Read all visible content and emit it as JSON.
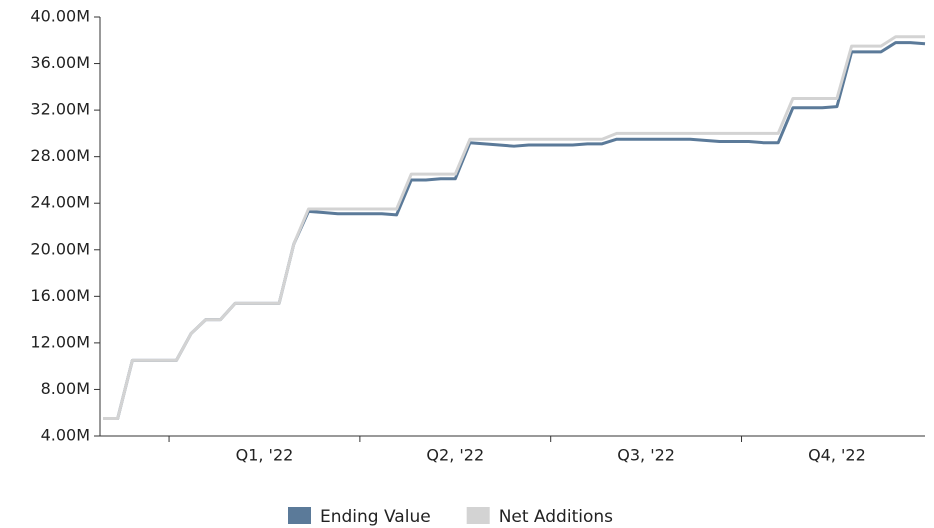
{
  "chart_data": {
    "type": "line",
    "categories": [
      null,
      null,
      null,
      null,
      null,
      null,
      null,
      null,
      null,
      null,
      null,
      "Q1, '22",
      null,
      null,
      null,
      null,
      null,
      null,
      null,
      null,
      null,
      null,
      null,
      null,
      "Q2, '22",
      null,
      null,
      null,
      null,
      null,
      null,
      null,
      null,
      null,
      null,
      null,
      null,
      "Q3, '22",
      null,
      null,
      null,
      null,
      null,
      null,
      null,
      null,
      null,
      null,
      null,
      null,
      "Q4, '22",
      null,
      null,
      null,
      null,
      null,
      null
    ],
    "series": [
      {
        "name": "Ending Value",
        "color": "#5b7a99",
        "values": [
          5500000,
          5500000,
          10500000,
          10500000,
          10500000,
          10500000,
          12800000,
          14000000,
          14000000,
          15400000,
          15400000,
          15400000,
          15400000,
          20500000,
          23300000,
          23200000,
          23100000,
          23100000,
          23100000,
          23100000,
          23000000,
          26000000,
          26000000,
          26100000,
          26100000,
          29200000,
          29100000,
          29000000,
          28900000,
          29000000,
          29000000,
          29000000,
          29000000,
          29100000,
          29100000,
          29500000,
          29500000,
          29500000,
          29500000,
          29500000,
          29500000,
          29400000,
          29300000,
          29300000,
          29300000,
          29200000,
          29200000,
          32200000,
          32200000,
          32200000,
          32300000,
          37000000,
          37000000,
          37000000,
          37800000,
          37800000,
          37700000
        ]
      },
      {
        "name": "Net Additions",
        "color": "#d3d3d3",
        "values": [
          5500000,
          5500000,
          10500000,
          10500000,
          10500000,
          10500000,
          12800000,
          14000000,
          14000000,
          15400000,
          15400000,
          15400000,
          15400000,
          20500000,
          23500000,
          23500000,
          23500000,
          23500000,
          23500000,
          23500000,
          23500000,
          26500000,
          26500000,
          26500000,
          26500000,
          29500000,
          29500000,
          29500000,
          29500000,
          29500000,
          29500000,
          29500000,
          29500000,
          29500000,
          29500000,
          30000000,
          30000000,
          30000000,
          30000000,
          30000000,
          30000000,
          30000000,
          30000000,
          30000000,
          30000000,
          30000000,
          30000000,
          33000000,
          33000000,
          33000000,
          33000000,
          37500000,
          37500000,
          37500000,
          38300000,
          38300000,
          38300000
        ]
      }
    ],
    "ylim": [
      4000000,
      40000000
    ],
    "yticks": [
      {
        "value": 4000000,
        "label": "4.00M"
      },
      {
        "value": 8000000,
        "label": "8.00M"
      },
      {
        "value": 12000000,
        "label": "12.00M"
      },
      {
        "value": 16000000,
        "label": "16.00M"
      },
      {
        "value": 20000000,
        "label": "20.00M"
      },
      {
        "value": 24000000,
        "label": "24.00M"
      },
      {
        "value": 28000000,
        "label": "28.00M"
      },
      {
        "value": 32000000,
        "label": "32.00M"
      },
      {
        "value": 36000000,
        "label": "36.00M"
      },
      {
        "value": 40000000,
        "label": "40.00M"
      }
    ],
    "legend": "bottom"
  }
}
